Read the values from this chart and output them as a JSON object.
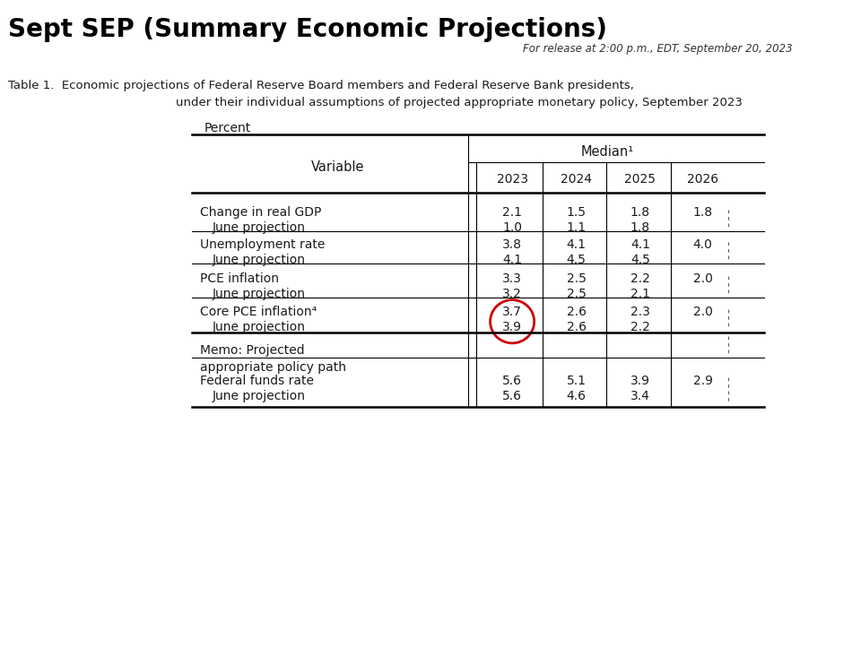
{
  "title": "Sept SEP (Summary Economic Projections)",
  "release_note": "For release at 2:00 p.m., EDT, September 20, 2023",
  "table_caption_line1": "Table 1.  Economic projections of Federal Reserve Board members and Federal Reserve Bank presidents,",
  "table_caption_line2": "under their individual assumptions of projected appropriate monetary policy, September 2023",
  "percent_label": "Percent",
  "median_label": "Median¹",
  "col_headers": [
    "Variable",
    "2023",
    "2024",
    "2025",
    "2026"
  ],
  "rows": [
    {
      "label": "Change in real GDP",
      "v2023": "2.1",
      "v2024": "1.5",
      "v2025": "1.8",
      "v2026": "1.8",
      "is_june": false
    },
    {
      "label": "June projection",
      "v2023": "1.0",
      "v2024": "1.1",
      "v2025": "1.8",
      "v2026": "",
      "is_june": true
    },
    {
      "label": "Unemployment rate",
      "v2023": "3.8",
      "v2024": "4.1",
      "v2025": "4.1",
      "v2026": "4.0",
      "is_june": false
    },
    {
      "label": "June projection",
      "v2023": "4.1",
      "v2024": "4.5",
      "v2025": "4.5",
      "v2026": "",
      "is_june": true
    },
    {
      "label": "PCE inflation",
      "v2023": "3.3",
      "v2024": "2.5",
      "v2025": "2.2",
      "v2026": "2.0",
      "is_june": false
    },
    {
      "label": "June projection",
      "v2023": "3.2",
      "v2024": "2.5",
      "v2025": "2.1",
      "v2026": "",
      "is_june": true
    },
    {
      "label": "Core PCE inflation⁴",
      "v2023": "3.7",
      "v2024": "2.6",
      "v2025": "2.3",
      "v2026": "2.0",
      "is_june": false,
      "circle_2023": true
    },
    {
      "label": "June projection",
      "v2023": "3.9",
      "v2024": "2.6",
      "v2025": "2.2",
      "v2026": "",
      "is_june": true,
      "circle_2023": true
    },
    {
      "label": "Memo: Projected\nappropriate policy path",
      "v2023": "",
      "v2024": "",
      "v2025": "",
      "v2026": "",
      "is_june": false,
      "is_memo": true
    },
    {
      "label": "Federal funds rate",
      "v2023": "5.6",
      "v2024": "5.1",
      "v2025": "3.9",
      "v2026": "2.9",
      "is_june": false
    },
    {
      "label": "June projection",
      "v2023": "5.6",
      "v2024": "4.6",
      "v2025": "3.4",
      "v2026": "",
      "is_june": true
    }
  ],
  "bg_color": "#ffffff",
  "title_color": "#000000",
  "table_text_color": "#1a1a1a",
  "circle_color": "#cc0000",
  "dashed_line_color": "#555555"
}
